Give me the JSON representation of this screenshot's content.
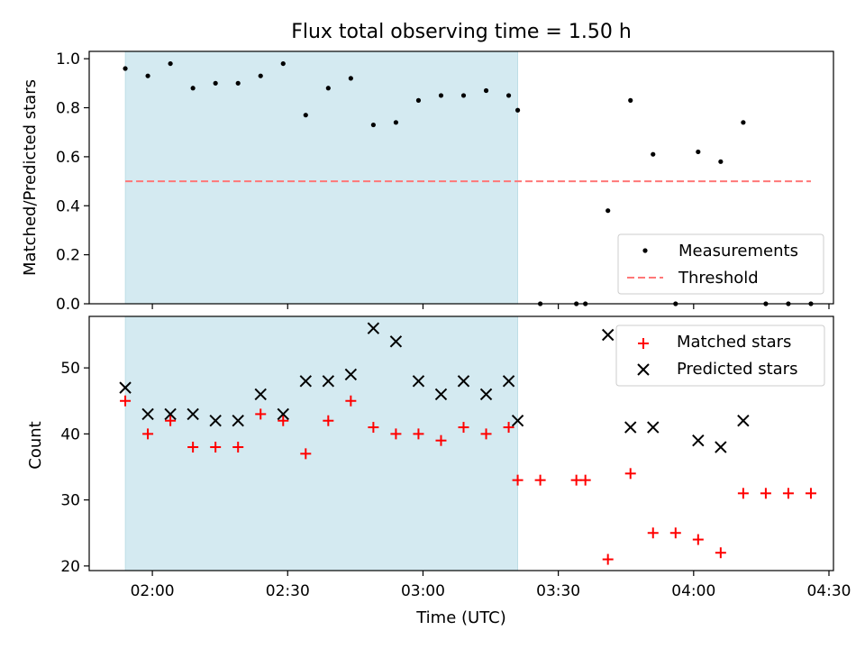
{
  "colors": {
    "shade": "#d4eaf1",
    "measure": "#000000",
    "threshold": "#ff7777",
    "matched": "#ff0000",
    "predicted": "#000000"
  },
  "chart_data": [
    {
      "type": "scatter",
      "title": "Flux total observing time = 1.50 h",
      "xlabel": "",
      "ylabel": "Matched/Predicted stars",
      "xlim": [
        "01:46",
        "04:31"
      ],
      "ylim": [
        0,
        1.03
      ],
      "yticks": [
        "0.0",
        "0.2",
        "0.4",
        "0.6",
        "0.8",
        "1.0"
      ],
      "shaded_region": [
        "01:54",
        "03:21"
      ],
      "legend": [
        "Measurements",
        "Threshold"
      ],
      "legend_position": "lower right",
      "threshold": {
        "name": "Threshold",
        "y": 0.5,
        "x": [
          "01:54",
          "04:26"
        ]
      },
      "series": [
        {
          "name": "Measurements",
          "x": [
            "01:54",
            "01:59",
            "02:04",
            "02:09",
            "02:14",
            "02:19",
            "02:24",
            "02:29",
            "02:34",
            "02:39",
            "02:44",
            "02:49",
            "02:54",
            "02:59",
            "03:04",
            "03:09",
            "03:14",
            "03:19",
            "03:21",
            "03:26",
            "03:34",
            "03:36",
            "03:41",
            "03:46",
            "03:51",
            "03:56",
            "04:01",
            "04:06",
            "04:11",
            "04:16",
            "04:21",
            "04:26"
          ],
          "y": [
            0.96,
            0.93,
            0.98,
            0.88,
            0.9,
            0.9,
            0.93,
            0.98,
            0.77,
            0.88,
            0.92,
            0.73,
            0.74,
            0.83,
            0.85,
            0.85,
            0.87,
            0.85,
            0.79,
            0,
            0,
            0,
            0.38,
            0.83,
            0.61,
            0,
            0.62,
            0.58,
            0.74,
            0,
            0,
            0
          ]
        }
      ]
    },
    {
      "type": "scatter",
      "title": "",
      "xlabel": "Time (UTC)",
      "ylabel": "Count",
      "xlim": [
        "01:46",
        "04:31"
      ],
      "ylim": [
        19.3,
        57.8
      ],
      "xticks": [
        "02:00",
        "02:30",
        "03:00",
        "03:30",
        "04:00",
        "04:30"
      ],
      "yticks": [
        "20",
        "30",
        "40",
        "50"
      ],
      "shaded_region": [
        "01:54",
        "03:21"
      ],
      "legend": [
        "Matched stars",
        "Predicted stars"
      ],
      "legend_position": "upper right",
      "series": [
        {
          "name": "Matched stars",
          "x": [
            "01:54",
            "01:59",
            "02:04",
            "02:09",
            "02:14",
            "02:19",
            "02:24",
            "02:29",
            "02:34",
            "02:39",
            "02:44",
            "02:49",
            "02:54",
            "02:59",
            "03:04",
            "03:09",
            "03:14",
            "03:19",
            "03:21",
            "03:26",
            "03:34",
            "03:36",
            "03:41",
            "03:46",
            "03:51",
            "03:56",
            "04:01",
            "04:06",
            "04:11",
            "04:16",
            "04:21",
            "04:26"
          ],
          "y": [
            45,
            40,
            42,
            38,
            38,
            38,
            43,
            42,
            37,
            42,
            45,
            41,
            40,
            40,
            39,
            41,
            40,
            41,
            33,
            33,
            33,
            33,
            21,
            34,
            25,
            25,
            24,
            22,
            31,
            31,
            31,
            31
          ]
        },
        {
          "name": "Predicted stars",
          "x": [
            "01:54",
            "01:59",
            "02:04",
            "02:09",
            "02:14",
            "02:19",
            "02:24",
            "02:29",
            "02:34",
            "02:39",
            "02:44",
            "02:49",
            "02:54",
            "02:59",
            "03:04",
            "03:09",
            "03:14",
            "03:19",
            "03:21",
            "03:41",
            "03:46",
            "03:51",
            "04:01",
            "04:06",
            "04:11"
          ],
          "y": [
            47,
            43,
            43,
            43,
            42,
            42,
            46,
            43,
            48,
            48,
            49,
            56,
            54,
            48,
            46,
            48,
            46,
            48,
            42,
            55,
            41,
            41,
            39,
            38,
            42
          ]
        }
      ]
    }
  ]
}
